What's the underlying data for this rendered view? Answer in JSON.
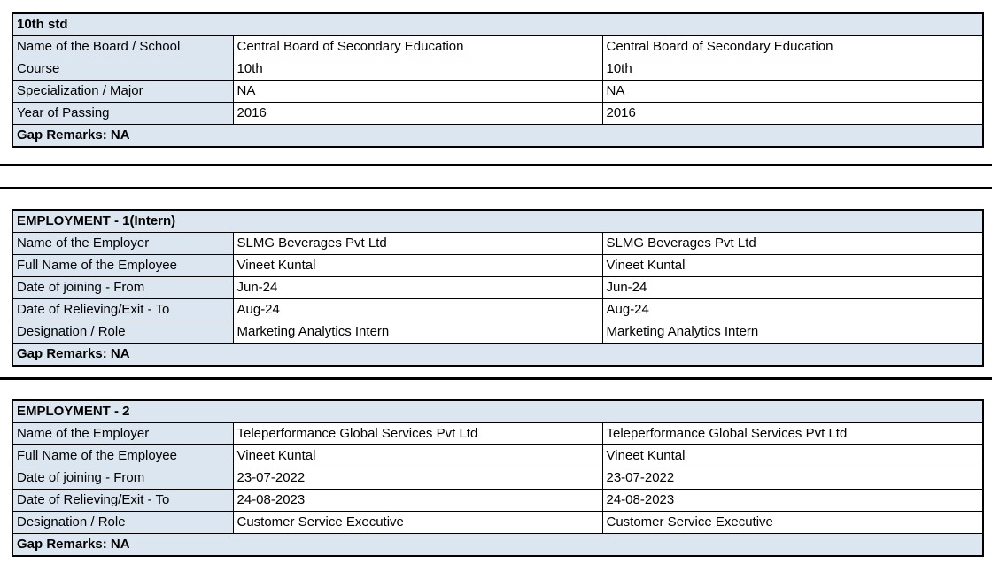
{
  "styles": {
    "header_fill": "#dce6f1",
    "border_color": "#000000",
    "text_color": "#000000",
    "page_background": "#ffffff"
  },
  "tables": [
    {
      "title": "10th std",
      "rows": [
        {
          "label": "Name of the Board / School",
          "value1": "Central Board of Secondary Education",
          "value2": "Central Board of Secondary Education"
        },
        {
          "label": "Course",
          "value1": "10th",
          "value2": "10th"
        },
        {
          "label": "Specialization / Major",
          "value1": "NA",
          "value2": "NA"
        },
        {
          "label": "Year of Passing",
          "value1": "2016",
          "value2": "2016"
        }
      ],
      "footer": "Gap Remarks: NA"
    },
    {
      "title": "EMPLOYMENT - 1(Intern)",
      "rows": [
        {
          "label": "Name of the Employer",
          "value1": "SLMG Beverages Pvt Ltd",
          "value2": "SLMG Beverages Pvt Ltd"
        },
        {
          "label": "Full Name of the Employee",
          "value1": "Vineet Kuntal",
          "value2": "Vineet Kuntal"
        },
        {
          "label": "Date of joining - From",
          "value1": "Jun-24",
          "value2": "Jun-24"
        },
        {
          "label": "Date of Relieving/Exit - To",
          "value1": "Aug-24",
          "value2": "Aug-24"
        },
        {
          "label": "Designation / Role",
          "value1": "Marketing Analytics Intern",
          "value2": "Marketing Analytics Intern"
        }
      ],
      "footer": "Gap Remarks: NA"
    },
    {
      "title": "EMPLOYMENT - 2",
      "rows": [
        {
          "label": "Name of the Employer",
          "value1": "Teleperformance Global Services Pvt Ltd",
          "value2": "Teleperformance Global Services Pvt Ltd"
        },
        {
          "label": "Full Name of the Employee",
          "value1": "Vineet Kuntal",
          "value2": "Vineet Kuntal"
        },
        {
          "label": "Date of joining - From",
          "value1": "23-07-2022",
          "value2": "23-07-2022"
        },
        {
          "label": "Date of Relieving/Exit - To",
          "value1": "24-08-2023",
          "value2": "24-08-2023"
        },
        {
          "label": "Designation / Role",
          "value1": "Customer Service Executive",
          "value2": "Customer Service Executive"
        }
      ],
      "footer": "Gap Remarks: NA"
    }
  ]
}
